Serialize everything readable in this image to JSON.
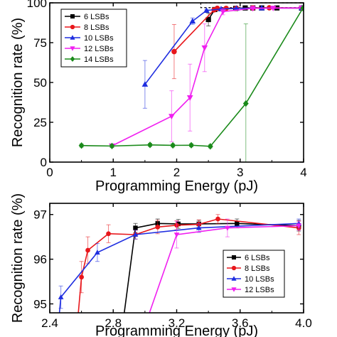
{
  "chart_data": [
    {
      "type": "line",
      "title": "",
      "xlabel": "Programming Energy (pJ)",
      "ylabel": "Recognition rate (%)",
      "xlim": [
        0,
        4
      ],
      "ylim": [
        0,
        100
      ],
      "x_ticks": [
        0,
        1,
        2,
        3,
        4
      ],
      "y_ticks": [
        0,
        25,
        50,
        75,
        100
      ],
      "legend_position": "top-left",
      "grid": false,
      "reference_box": {
        "x": [
          2.38,
          4.0
        ],
        "y": [
          97,
          100
        ]
      },
      "series": [
        {
          "name": "6 LSBs",
          "color": "#000000",
          "marker": "square",
          "x": [
            2.5,
            2.6,
            2.93,
            3.08,
            3.2,
            3.34,
            3.58,
            3.97
          ],
          "y": [
            89.5,
            95.8,
            96.5,
            96.8,
            96.8,
            96.8,
            96.8,
            96.7
          ],
          "err": [
            4,
            0.5,
            0.3,
            0.2,
            0.2,
            0.2,
            0.2,
            0.2
          ]
        },
        {
          "name": "8 LSBs",
          "color": "#e8161b",
          "marker": "circle",
          "x": [
            1.96,
            2.59,
            2.64,
            2.78,
            2.94,
            3.2,
            3.46,
            3.97
          ],
          "y": [
            69.4,
            95.6,
            96.6,
            96.55,
            96.6,
            96.8,
            96.9,
            96.8
          ],
          "err": [
            17,
            1,
            0.5,
            0.2,
            0.2,
            0.2,
            0.2,
            0.2
          ]
        },
        {
          "name": "10 LSBs",
          "color": "#1f2ee0",
          "marker": "triangle-up",
          "x": [
            1.5,
            2.25,
            2.47,
            2.7,
            2.94,
            3.34,
            3.97
          ],
          "y": [
            48.8,
            88.5,
            95.2,
            96.15,
            96.55,
            96.7,
            96.8
          ],
          "err": [
            15,
            2,
            0.5,
            0.2,
            0.2,
            0.2,
            0.2
          ]
        },
        {
          "name": "12 LSBs",
          "color": "#f020f0",
          "marker": "triangle-down",
          "x": [
            0.98,
            1.92,
            2.21,
            2.44,
            2.73,
            3.2,
            3.52,
            3.97
          ],
          "y": [
            10.2,
            28.8,
            40.5,
            71.8,
            94.5,
            96.55,
            96.7,
            96.75
          ],
          "err": [
            1,
            16,
            21,
            15,
            2,
            0.5,
            0.3,
            0.3
          ]
        },
        {
          "name": "14 LSBs",
          "color": "#1a8a1a",
          "marker": "diamond",
          "x": [
            0.5,
            0.98,
            1.58,
            1.94,
            2.23,
            2.53,
            3.09,
            3.99
          ],
          "y": [
            10.4,
            10.1,
            10.8,
            10.5,
            10.6,
            9.9,
            36.8,
            96.7
          ],
          "err": [
            1,
            1,
            1,
            1,
            1,
            1,
            50,
            0.3
          ]
        }
      ]
    },
    {
      "type": "line",
      "title": "",
      "xlabel": "Programming Energy (pJ)",
      "ylabel": "Recognition rate (%)",
      "xlim": [
        2.4,
        4.0
      ],
      "ylim": [
        94.8,
        97.25
      ],
      "x_ticks": [
        "2.4",
        "2.8",
        "3.2",
        "3.6",
        "4.0"
      ],
      "y_ticks": [
        95,
        96,
        97
      ],
      "legend_position": "bottom-right",
      "grid": false,
      "series": [
        {
          "name": "6 LSBs",
          "color": "#000000",
          "marker": "square",
          "x": [
            2.84,
            2.94,
            3.08,
            3.21,
            3.34,
            3.58,
            3.97
          ],
          "y": [
            94.0,
            96.7,
            96.8,
            96.79,
            96.79,
            96.8,
            96.75
          ],
          "err": [
            0,
            0.1,
            0.1,
            0.1,
            0.08,
            0.1,
            0.12
          ]
        },
        {
          "name": "8 LSBs",
          "color": "#e8161b",
          "marker": "circle",
          "x": [
            2.56,
            2.6,
            2.64,
            2.77,
            2.94,
            3.08,
            3.2,
            3.34,
            3.46,
            3.97
          ],
          "y": [
            94.0,
            95.6,
            96.2,
            96.57,
            96.55,
            96.72,
            96.76,
            96.78,
            96.9,
            96.7
          ],
          "err": [
            0,
            0.35,
            0.3,
            0.2,
            0.1,
            0.15,
            0.1,
            0.1,
            0.1,
            0.15
          ]
        },
        {
          "name": "10 LSBs",
          "color": "#1f2ee0",
          "marker": "triangle-up",
          "x": [
            2.44,
            2.47,
            2.7,
            2.94,
            3.34,
            3.97
          ],
          "y": [
            94.0,
            95.15,
            96.15,
            96.55,
            96.7,
            96.8
          ],
          "err": [
            0,
            0.25,
            0.2,
            0.1,
            0.1,
            0.1
          ]
        },
        {
          "name": "12 LSBs",
          "color": "#f020f0",
          "marker": "triangle-down",
          "x": [
            2.95,
            3.2,
            3.52,
            3.97
          ],
          "y": [
            94.0,
            96.55,
            96.7,
            96.75
          ],
          "err": [
            0,
            0.3,
            0.2,
            0.1
          ]
        }
      ]
    }
  ]
}
